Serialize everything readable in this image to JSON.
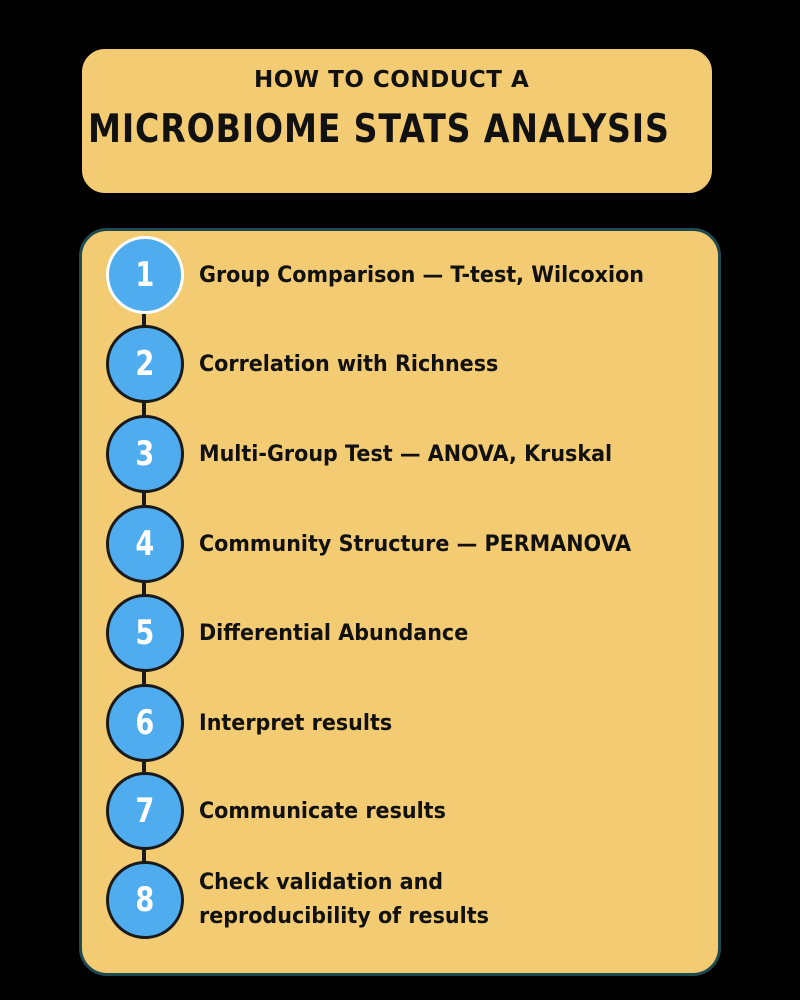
{
  "title": {
    "subtitle": "HOW TO CONDUCT A",
    "main": "MICROBIOME STATS ANALYSIS"
  },
  "colors": {
    "background": "#000000",
    "panel": "#f3cb73",
    "step_circle": "#4eacef",
    "text": "#111111"
  },
  "steps": [
    {
      "number": "1",
      "label": "Group Comparison — T-test, Wilcoxion"
    },
    {
      "number": "2",
      "label": "Correlation with Richness"
    },
    {
      "number": "3",
      "label": "Multi-Group Test — ANOVA, Kruskal"
    },
    {
      "number": "4",
      "label": "Community Structure — PERMANOVA"
    },
    {
      "number": "5",
      "label": "Differential Abundance"
    },
    {
      "number": "6",
      "label": "Interpret results"
    },
    {
      "number": "7",
      "label": "Communicate results"
    },
    {
      "number": "8",
      "label": "Check validation and reproducibility of results"
    }
  ]
}
